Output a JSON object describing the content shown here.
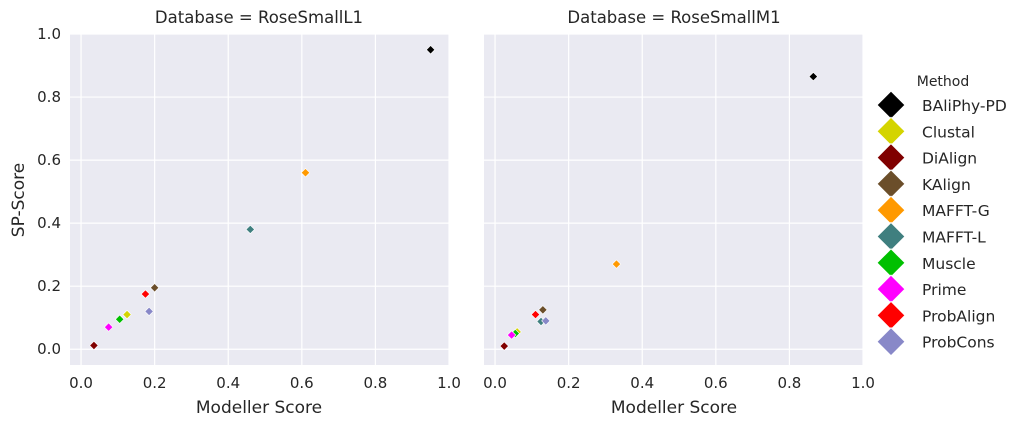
{
  "chart_data": [
    {
      "type": "scatter",
      "title": "Database = RoseSmallL1",
      "xlabel": "Modeller Score",
      "ylabel": "SP-Score",
      "xlim": [
        -0.03,
        1.0
      ],
      "ylim": [
        -0.05,
        1.0
      ],
      "xticks": [
        "0.0",
        "0.2",
        "0.4",
        "0.6",
        "0.8",
        "1.0"
      ],
      "yticks": [
        "0.0",
        "0.2",
        "0.4",
        "0.6",
        "0.8",
        "1.0"
      ],
      "grid": true,
      "series": [
        {
          "name": "BAliPhy-PD",
          "color": "#000000",
          "x": 0.95,
          "y": 0.95
        },
        {
          "name": "Clustal",
          "color": "#d4d400",
          "x": 0.125,
          "y": 0.11
        },
        {
          "name": "DiAlign",
          "color": "#800000",
          "x": 0.035,
          "y": 0.012
        },
        {
          "name": "KAlign",
          "color": "#6b4e2a",
          "x": 0.2,
          "y": 0.195
        },
        {
          "name": "MAFFT-G",
          "color": "#ff9900",
          "x": 0.61,
          "y": 0.56
        },
        {
          "name": "MAFFT-L",
          "color": "#3f7f7f",
          "x": 0.46,
          "y": 0.38
        },
        {
          "name": "Muscle",
          "color": "#00c000",
          "x": 0.105,
          "y": 0.095
        },
        {
          "name": "Prime",
          "color": "#ff00ff",
          "x": 0.075,
          "y": 0.07
        },
        {
          "name": "ProbAlign",
          "color": "#ff0000",
          "x": 0.175,
          "y": 0.175
        },
        {
          "name": "ProbCons",
          "color": "#8888c8",
          "x": 0.185,
          "y": 0.12
        }
      ]
    },
    {
      "type": "scatter",
      "title": "Database = RoseSmallM1",
      "xlabel": "Modeller Score",
      "ylabel": "",
      "xlim": [
        -0.03,
        1.0
      ],
      "ylim": [
        -0.05,
        1.0
      ],
      "xticks": [
        "0.0",
        "0.2",
        "0.4",
        "0.6",
        "0.8",
        "1.0"
      ],
      "yticks": [],
      "grid": true,
      "series": [
        {
          "name": "BAliPhy-PD",
          "color": "#000000",
          "x": 0.865,
          "y": 0.865
        },
        {
          "name": "Clustal",
          "color": "#d4d400",
          "x": 0.06,
          "y": 0.055
        },
        {
          "name": "DiAlign",
          "color": "#800000",
          "x": 0.025,
          "y": 0.01
        },
        {
          "name": "KAlign",
          "color": "#6b4e2a",
          "x": 0.13,
          "y": 0.125
        },
        {
          "name": "MAFFT-G",
          "color": "#ff9900",
          "x": 0.33,
          "y": 0.27
        },
        {
          "name": "MAFFT-L",
          "color": "#3f7f7f",
          "x": 0.125,
          "y": 0.088
        },
        {
          "name": "Muscle",
          "color": "#00c000",
          "x": 0.055,
          "y": 0.05
        },
        {
          "name": "Prime",
          "color": "#ff00ff",
          "x": 0.045,
          "y": 0.045
        },
        {
          "name": "ProbAlign",
          "color": "#ff0000",
          "x": 0.11,
          "y": 0.11
        },
        {
          "name": "ProbCons",
          "color": "#8888c8",
          "x": 0.138,
          "y": 0.09
        }
      ]
    }
  ],
  "legend": {
    "title": "Method",
    "position": "right",
    "items": [
      {
        "label": "BAliPhy-PD",
        "color": "#000000"
      },
      {
        "label": "Clustal",
        "color": "#d4d400"
      },
      {
        "label": "DiAlign",
        "color": "#800000"
      },
      {
        "label": "KAlign",
        "color": "#6b4e2a"
      },
      {
        "label": "MAFFT-G",
        "color": "#ff9900"
      },
      {
        "label": "MAFFT-L",
        "color": "#3f7f7f"
      },
      {
        "label": "Muscle",
        "color": "#00c000"
      },
      {
        "label": "Prime",
        "color": "#ff00ff"
      },
      {
        "label": "ProbAlign",
        "color": "#ff0000"
      },
      {
        "label": "ProbCons",
        "color": "#8888c8"
      }
    ]
  }
}
